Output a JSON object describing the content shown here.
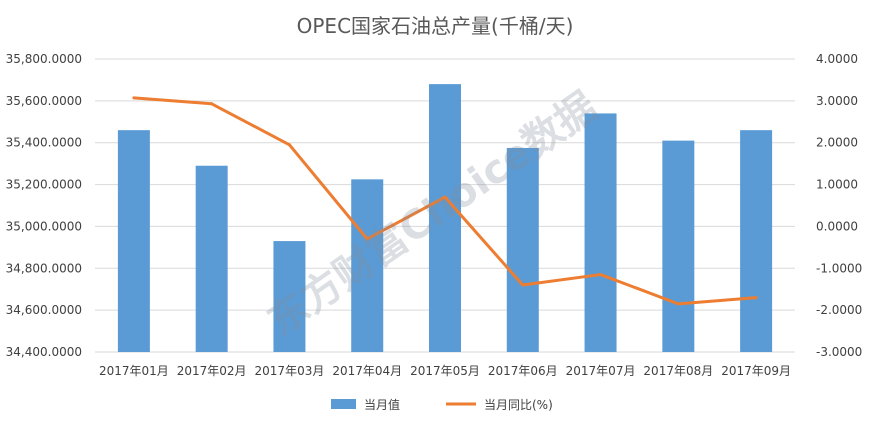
{
  "chart_data": {
    "type": "bar",
    "title": "OPEC国家石油总产量(千桶/天)",
    "categories": [
      "2017年01月",
      "2017年02月",
      "2017年03月",
      "2017年04月",
      "2017年05月",
      "2017年06月",
      "2017年07月",
      "2017年08月",
      "2017年09月"
    ],
    "series": [
      {
        "name": "当月值",
        "type": "bar",
        "axis": "left",
        "color": "#5b9bd5",
        "values": [
          35460,
          35290,
          34930,
          35225,
          35680,
          35375,
          35540,
          35410,
          35460
        ]
      },
      {
        "name": "当月同比(%)",
        "type": "line",
        "axis": "right",
        "color": "#ed7d31",
        "values": [
          3.07,
          2.93,
          1.95,
          -0.3,
          0.7,
          -1.4,
          -1.15,
          -1.85,
          -1.7
        ]
      }
    ],
    "ylim_left": [
      34400,
      35800
    ],
    "yticks_left": [
      "34,400.0000",
      "34,600.0000",
      "34,800.0000",
      "35,000.0000",
      "35,200.0000",
      "35,400.0000",
      "35,600.0000",
      "35,800.0000"
    ],
    "ylim_right": [
      -3,
      4
    ],
    "yticks_right": [
      "-3.0000",
      "-2.0000",
      "-1.0000",
      "0.0000",
      "1.0000",
      "2.0000",
      "3.0000",
      "4.0000"
    ],
    "grid": true,
    "legend_position": "bottom"
  },
  "watermark": "东方财富Choice数据"
}
